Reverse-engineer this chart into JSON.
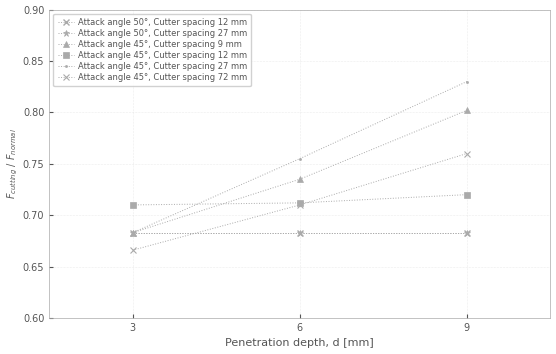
{
  "x_values": [
    3,
    6,
    9
  ],
  "series": [
    {
      "label": "Attack angle 50°, Cutter spacing 12 mm",
      "y": [
        0.683,
        0.683,
        0.683
      ],
      "color": "#aaaaaa",
      "marker": "x",
      "linestyle": ":"
    },
    {
      "label": "Attack angle 50°, Cutter spacing 27 mm",
      "y": [
        0.683,
        0.683,
        0.683
      ],
      "color": "#aaaaaa",
      "marker": "*",
      "linestyle": ":"
    },
    {
      "label": "Attack angle 45°, Cutter spacing 9 mm",
      "y": [
        0.683,
        0.735,
        0.802
      ],
      "color": "#aaaaaa",
      "marker": "^",
      "linestyle": ":"
    },
    {
      "label": "Attack angle 45°, Cutter spacing 12 mm",
      "y": [
        0.71,
        0.712,
        0.72
      ],
      "color": "#aaaaaa",
      "marker": "s",
      "linestyle": ":"
    },
    {
      "label": "Attack angle 45°, Cutter spacing 27 mm",
      "y": [
        0.683,
        0.755,
        0.83
      ],
      "color": "#aaaaaa",
      "marker": "o",
      "linestyle": ":"
    },
    {
      "label": "Attack angle 45°, Cutter spacing 72 mm",
      "y": [
        0.666,
        0.71,
        0.76
      ],
      "color": "#aaaaaa",
      "marker": "D",
      "linestyle": ":"
    }
  ],
  "xlabel": "Penetration depth, d [mm]",
  "ylabel_line1": "F",
  "ylabel_line2": "cutting",
  "xlim": [
    1.5,
    10.5
  ],
  "ylim": [
    0.6,
    0.9
  ],
  "yticks": [
    0.6,
    0.65,
    0.7,
    0.75,
    0.8,
    0.85,
    0.9
  ],
  "xticks": [
    3,
    6,
    9
  ],
  "bg_color": "#ffffff",
  "line_color": "#aaaaaa",
  "legend_fontsize": 6,
  "axis_fontsize": 8,
  "tick_fontsize": 7
}
